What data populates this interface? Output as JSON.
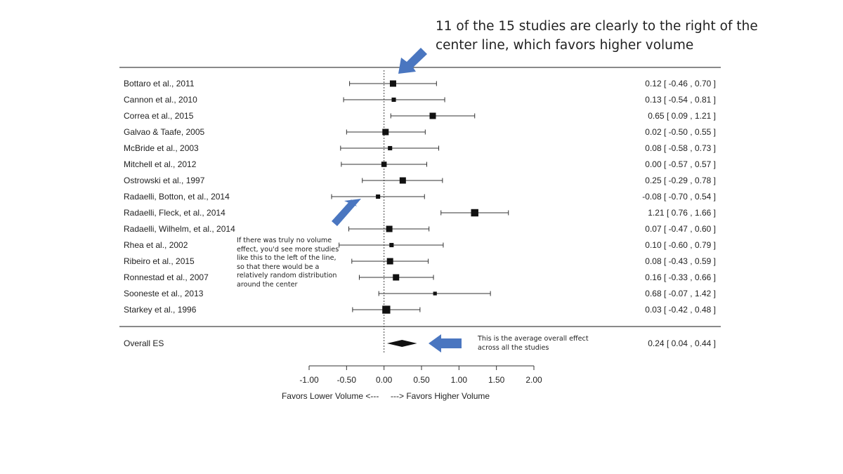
{
  "annotations": {
    "top": "11 of the 15 studies are clearly to the right of the center line, which favors higher volume",
    "left": "If there was truly no volume effect, you'd see more studies like this to the left of the line, so that there would be a relatively random distribution around the center",
    "overall": "This is the average overall effect across all the studies"
  },
  "colors": {
    "arrow": "#4a76c0",
    "ink": "#222222"
  },
  "chart_data": {
    "type": "forest",
    "xlabel": "Favors Lower Volume <---     ---> Favors Higher Volume",
    "xlim": [
      -1.0,
      2.0
    ],
    "reference_line": 0.0,
    "ticks": [
      -1.0,
      -0.5,
      0.0,
      0.5,
      1.0,
      1.5,
      2.0
    ],
    "tick_labels": [
      "-1.00",
      "-0.50",
      "0.00",
      "0.50",
      "1.00",
      "1.50",
      "2.00"
    ],
    "studies": [
      {
        "label": "Bottaro et al., 2011",
        "es": 0.12,
        "lo": -0.46,
        "hi": 0.7,
        "ci_text": "0.12 [ -0.46 , 0.70 ]",
        "weight": 2
      },
      {
        "label": "Cannon et al., 2010",
        "es": 0.13,
        "lo": -0.54,
        "hi": 0.81,
        "ci_text": "0.13 [ -0.54 , 0.81 ]",
        "weight": 1
      },
      {
        "label": "Correa et al., 2015",
        "es": 0.65,
        "lo": 0.09,
        "hi": 1.21,
        "ci_text": "0.65 [ 0.09 , 1.21 ]",
        "weight": 2
      },
      {
        "label": "Galvao & Taafe, 2005",
        "es": 0.02,
        "lo": -0.5,
        "hi": 0.55,
        "ci_text": "0.02 [ -0.50 , 0.55 ]",
        "weight": 2
      },
      {
        "label": "McBride et al., 2003",
        "es": 0.08,
        "lo": -0.58,
        "hi": 0.73,
        "ci_text": "0.08 [ -0.58 , 0.73 ]",
        "weight": 1
      },
      {
        "label": "Mitchell et al., 2012",
        "es": 0.0,
        "lo": -0.57,
        "hi": 0.57,
        "ci_text": "0.00 [ -0.57 , 0.57 ]",
        "weight": 1.5
      },
      {
        "label": "Ostrowski et al., 1997",
        "es": 0.25,
        "lo": -0.29,
        "hi": 0.78,
        "ci_text": "0.25 [ -0.29 , 0.78 ]",
        "weight": 2
      },
      {
        "label": "Radaelli, Botton, et al., 2014",
        "es": -0.08,
        "lo": -0.7,
        "hi": 0.54,
        "ci_text": "-0.08 [ -0.70 , 0.54 ]",
        "weight": 1
      },
      {
        "label": "Radaelli, Fleck, et al., 2014",
        "es": 1.21,
        "lo": 0.76,
        "hi": 1.66,
        "ci_text": "1.21 [ 0.76 , 1.66 ]",
        "weight": 2.5
      },
      {
        "label": "Radaelli, Wilhelm, et al., 2014",
        "es": 0.07,
        "lo": -0.47,
        "hi": 0.6,
        "ci_text": "0.07 [ -0.47 , 0.60 ]",
        "weight": 2
      },
      {
        "label": "Rhea et al., 2002",
        "es": 0.1,
        "lo": -0.6,
        "hi": 0.79,
        "ci_text": "0.10 [ -0.60 , 0.79 ]",
        "weight": 1
      },
      {
        "label": "Ribeiro et al., 2015",
        "es": 0.08,
        "lo": -0.43,
        "hi": 0.59,
        "ci_text": "0.08 [ -0.43 , 0.59 ]",
        "weight": 2
      },
      {
        "label": "Ronnestad et al., 2007",
        "es": 0.16,
        "lo": -0.33,
        "hi": 0.66,
        "ci_text": "0.16 [ -0.33 , 0.66 ]",
        "weight": 2
      },
      {
        "label": "Sooneste et al., 2013",
        "es": 0.68,
        "lo": -0.07,
        "hi": 1.42,
        "ci_text": "0.68 [ -0.07 , 1.42 ]",
        "weight": 0.7
      },
      {
        "label": "Starkey et al., 1996",
        "es": 0.03,
        "lo": -0.42,
        "hi": 0.48,
        "ci_text": "0.03 [ -0.42 , 0.48 ]",
        "weight": 2.8
      }
    ],
    "overall": {
      "label": "Overall ES",
      "es": 0.24,
      "lo": 0.04,
      "hi": 0.44,
      "ci_text": "0.24 [ 0.04 , 0.44 ]"
    }
  }
}
